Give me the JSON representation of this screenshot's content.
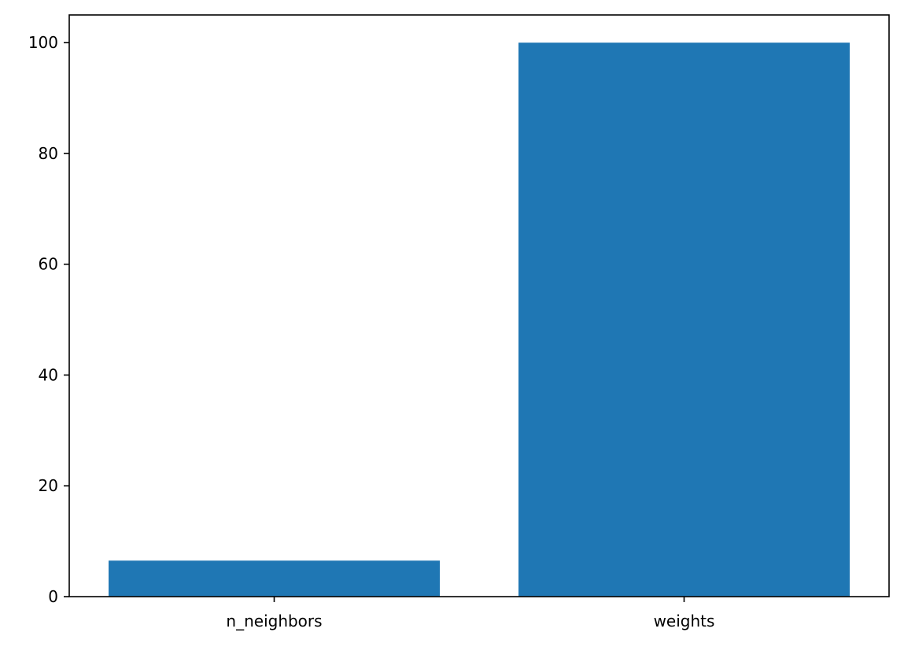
{
  "chart_data": {
    "type": "bar",
    "categories": [
      "n_neighbors",
      "weights"
    ],
    "values": [
      6.5,
      100
    ],
    "ylim": [
      0,
      105
    ],
    "yticks": [
      0,
      20,
      40,
      60,
      80,
      100
    ],
    "title": "",
    "xlabel": "",
    "ylabel": "",
    "grid": false,
    "bar_color": "#1f77b4"
  }
}
